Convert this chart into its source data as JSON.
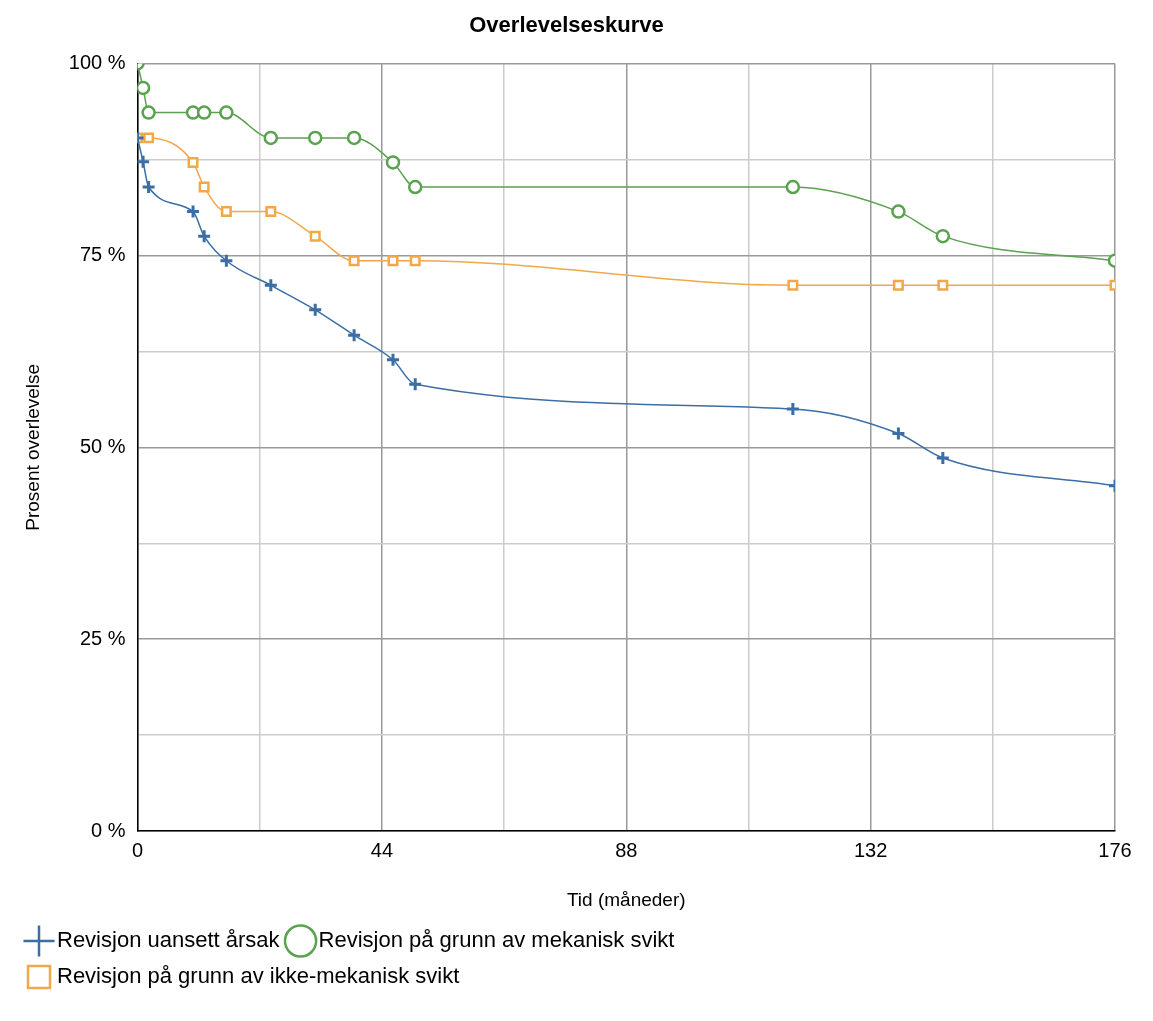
{
  "chart_data": {
    "type": "line",
    "title": "Overlevelseskurve",
    "xlabel": "Tid (måneder)",
    "ylabel": "Prosent overlevelse",
    "xlim": [
      0,
      176
    ],
    "xticks": [
      0,
      {
        "value": 22,
        "label": null
      },
      44,
      {
        "value": 66,
        "label": null
      },
      88,
      {
        "value": 110,
        "label": null
      },
      132,
      {
        "value": 154,
        "label": null
      },
      176
    ],
    "ylim": [
      0,
      100
    ],
    "yticks": [
      {
        "value": 0,
        "label": "0 %"
      },
      {
        "value": 12.5,
        "label": null
      },
      {
        "value": 25,
        "label": "25 %"
      },
      {
        "value": 37.5,
        "label": null
      },
      {
        "value": 50,
        "label": "50 %"
      },
      {
        "value": 62.5,
        "label": null
      },
      {
        "value": 75,
        "label": "75 %"
      },
      {
        "value": 87.5,
        "label": null
      },
      {
        "value": 100,
        "label": "100 %"
      }
    ],
    "grid": true,
    "legend": "bottom",
    "series": [
      {
        "name": "Revisjon uansett årsak",
        "color": "#3a6ea5",
        "marker": "cross",
        "x": [
          0,
          1,
          2,
          10,
          12,
          16,
          24,
          32,
          39,
          46,
          50,
          118,
          137,
          145,
          176
        ],
        "values": [
          90.3,
          87.2,
          83.9,
          80.7,
          77.5,
          74.3,
          71.1,
          67.9,
          64.6,
          61.4,
          58.2,
          55.0,
          51.8,
          48.6,
          45.0
        ]
      },
      {
        "name": "Revisjon på grunn av mekanisk svikt",
        "color": "#5aa150",
        "marker": "circle",
        "x": [
          0,
          1,
          2,
          10,
          12,
          16,
          24,
          32,
          39,
          46,
          50,
          118,
          137,
          145,
          176
        ],
        "values": [
          100,
          96.8,
          93.6,
          93.6,
          93.6,
          93.6,
          90.3,
          90.3,
          90.3,
          87.1,
          83.9,
          83.9,
          80.7,
          77.5,
          74.3
        ]
      },
      {
        "name": "Revisjon på grunn av ikke-mekanisk svikt",
        "color": "#f0a848",
        "marker": "square",
        "x": [
          0,
          2,
          10,
          12,
          16,
          24,
          32,
          39,
          46,
          50,
          118,
          137,
          145,
          176
        ],
        "values": [
          90.3,
          90.3,
          87.1,
          83.9,
          80.7,
          80.7,
          77.5,
          74.3,
          74.3,
          74.3,
          71.1,
          71.1,
          71.1,
          71.1
        ]
      }
    ]
  }
}
